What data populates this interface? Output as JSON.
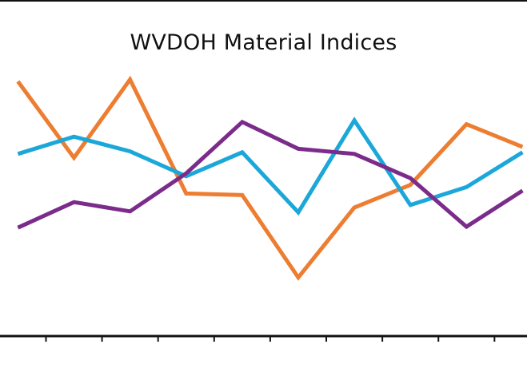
{
  "chart_data": {
    "type": "line",
    "title": "WVDOH Material Indices",
    "x": [
      1,
      2,
      3,
      4,
      5,
      6,
      7,
      8,
      9,
      10
    ],
    "xlim": [
      0.68,
      10.08
    ],
    "ylim": [
      0,
      100
    ],
    "grid": false,
    "legend": "none",
    "series": [
      {
        "color": "#ED7D31",
        "values": [
          79.5,
          55.6,
          80.1,
          44.4,
          43.9,
          18.1,
          40.0,
          47.1,
          66.1,
          59.0
        ]
      },
      {
        "color": "#1CA7D9",
        "values": [
          56.8,
          62.2,
          57.6,
          49.8,
          57.3,
          38.5,
          67.3,
          40.8,
          46.4,
          57.3
        ]
      },
      {
        "color": "#7B2C8B",
        "values": [
          33.7,
          41.7,
          38.8,
          50.7,
          66.8,
          58.4,
          56.8,
          49.2,
          34.0,
          45.3
        ]
      }
    ]
  }
}
